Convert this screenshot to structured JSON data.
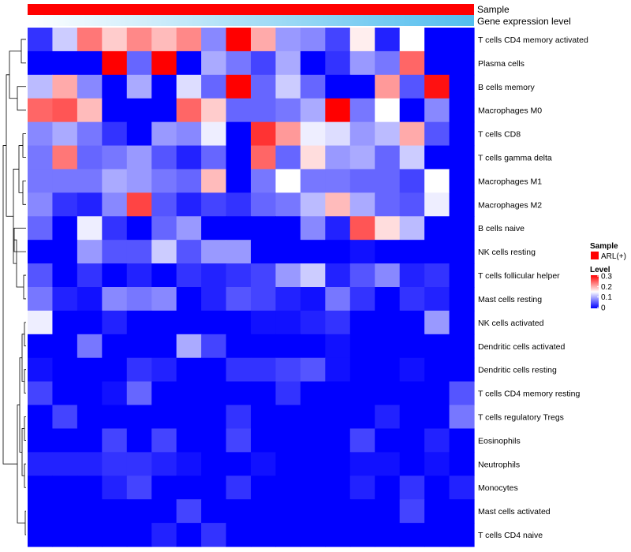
{
  "chart_data": {
    "type": "heatmap",
    "annotations": [
      {
        "label": "Sample",
        "color": "#ff0000"
      },
      {
        "label": "Gene expression level",
        "gradient": [
          "#ffffff",
          "#52bdee"
        ]
      }
    ],
    "rows": [
      "T cells CD4 memory activated",
      "Plasma cells",
      "B cells memory",
      "Macrophages M0",
      "T cells CD8",
      "T cells gamma delta",
      "Macrophages M1",
      "Macrophages M2",
      "B cells naive",
      "NK cells resting",
      "T cells follicular helper",
      "Mast cells resting",
      "NK cells activated",
      "Dendritic cells activated",
      "Dendritic cells resting",
      "T cells CD4 memory resting",
      "T cells regulatory  Tregs",
      "Eosinophils",
      "Neutrophils",
      "Monocytes",
      "Mast cells activated",
      "T cells CD4 naive"
    ],
    "n_columns": 18,
    "values": [
      [
        0.03,
        0.12,
        0.23,
        0.18,
        0.22,
        0.19,
        0.22,
        0.08,
        0.3,
        0.2,
        0.09,
        0.08,
        0.04,
        0.16,
        0.02,
        0.15,
        0.0,
        0.0
      ],
      [
        0.0,
        0.0,
        0.0,
        0.3,
        0.06,
        0.3,
        0.0,
        0.1,
        0.07,
        0.04,
        0.1,
        0.0,
        0.03,
        0.09,
        0.07,
        0.24,
        0.0,
        0.0
      ],
      [
        0.11,
        0.2,
        0.08,
        0.0,
        0.1,
        0.0,
        0.13,
        0.06,
        0.3,
        0.06,
        0.12,
        0.06,
        0.0,
        0.0,
        0.21,
        0.05,
        0.29,
        0.0
      ],
      [
        0.24,
        0.25,
        0.19,
        0.0,
        0.0,
        0.0,
        0.24,
        0.18,
        0.06,
        0.06,
        0.07,
        0.1,
        0.3,
        0.07,
        0.15,
        0.0,
        0.08,
        0.0
      ],
      [
        0.08,
        0.1,
        0.07,
        0.03,
        0.0,
        0.09,
        0.08,
        0.14,
        0.0,
        0.27,
        0.21,
        0.14,
        0.13,
        0.09,
        0.11,
        0.2,
        0.05,
        0.0
      ],
      [
        0.07,
        0.23,
        0.06,
        0.07,
        0.09,
        0.05,
        0.02,
        0.06,
        0.0,
        0.24,
        0.06,
        0.17,
        0.09,
        0.1,
        0.06,
        0.12,
        0.0,
        0.0
      ],
      [
        0.07,
        0.07,
        0.07,
        0.1,
        0.09,
        0.07,
        0.06,
        0.19,
        0.0,
        0.07,
        0.15,
        0.07,
        0.07,
        0.06,
        0.06,
        0.04,
        0.15,
        0.0
      ],
      [
        0.08,
        0.03,
        0.02,
        0.08,
        0.26,
        0.05,
        0.02,
        0.04,
        0.03,
        0.06,
        0.07,
        0.11,
        0.19,
        0.1,
        0.06,
        0.05,
        0.14,
        0.0
      ],
      [
        0.06,
        0.0,
        0.14,
        0.03,
        0.0,
        0.06,
        0.09,
        0.0,
        0.0,
        0.0,
        0.0,
        0.08,
        0.02,
        0.25,
        0.17,
        0.11,
        0.0,
        0.0
      ],
      [
        0.0,
        0.0,
        0.09,
        0.05,
        0.05,
        0.12,
        0.05,
        0.09,
        0.09,
        0.0,
        0.0,
        0.0,
        0.0,
        0.01,
        0.0,
        0.0,
        0.0,
        0.0
      ],
      [
        0.05,
        0.0,
        0.03,
        0.0,
        0.02,
        0.0,
        0.03,
        0.02,
        0.03,
        0.04,
        0.09,
        0.12,
        0.02,
        0.05,
        0.08,
        0.02,
        0.03,
        0.0
      ],
      [
        0.07,
        0.02,
        0.01,
        0.08,
        0.07,
        0.08,
        0.0,
        0.02,
        0.05,
        0.04,
        0.02,
        0.01,
        0.07,
        0.03,
        0.0,
        0.03,
        0.02,
        0.0
      ],
      [
        0.14,
        0.0,
        0.0,
        0.02,
        0.0,
        0.0,
        0.0,
        0.0,
        0.0,
        0.01,
        0.01,
        0.02,
        0.03,
        0.0,
        0.0,
        0.0,
        0.09,
        0.0
      ],
      [
        0.0,
        0.0,
        0.07,
        0.0,
        0.0,
        0.0,
        0.1,
        0.04,
        0.0,
        0.0,
        0.0,
        0.0,
        0.01,
        0.0,
        0.0,
        0.0,
        0.0,
        0.0
      ],
      [
        0.01,
        0.0,
        0.0,
        0.0,
        0.03,
        0.02,
        0.0,
        0.0,
        0.03,
        0.03,
        0.04,
        0.05,
        0.01,
        0.0,
        0.0,
        0.01,
        0.0,
        0.0
      ],
      [
        0.04,
        0.0,
        0.0,
        0.01,
        0.06,
        0.0,
        0.0,
        0.0,
        0.0,
        0.0,
        0.03,
        0.0,
        0.0,
        0.0,
        0.0,
        0.0,
        0.0,
        0.05
      ],
      [
        0.0,
        0.04,
        0.0,
        0.0,
        0.0,
        0.0,
        0.0,
        0.0,
        0.03,
        0.0,
        0.0,
        0.0,
        0.0,
        0.0,
        0.02,
        0.0,
        0.0,
        0.07
      ],
      [
        0.0,
        0.0,
        0.0,
        0.04,
        0.0,
        0.04,
        0.0,
        0.0,
        0.04,
        0.0,
        0.0,
        0.0,
        0.0,
        0.04,
        0.0,
        0.0,
        0.02,
        0.0
      ],
      [
        0.02,
        0.02,
        0.02,
        0.03,
        0.03,
        0.02,
        0.01,
        0.0,
        0.0,
        0.01,
        0.0,
        0.0,
        0.0,
        0.01,
        0.01,
        0.0,
        0.01,
        0.0
      ],
      [
        0.0,
        0.0,
        0.0,
        0.02,
        0.04,
        0.0,
        0.0,
        0.0,
        0.03,
        0.0,
        0.0,
        0.0,
        0.0,
        0.02,
        0.0,
        0.03,
        0.0,
        0.02
      ],
      [
        0.0,
        0.0,
        0.0,
        0.0,
        0.0,
        0.0,
        0.04,
        0.0,
        0.0,
        0.0,
        0.0,
        0.0,
        0.0,
        0.0,
        0.0,
        0.04,
        0.0,
        0.0
      ],
      [
        0.0,
        0.0,
        0.0,
        0.0,
        0.0,
        0.02,
        0.0,
        0.03,
        0.0,
        0.0,
        0.0,
        0.0,
        0.0,
        0.0,
        0.0,
        0.0,
        0.0,
        0.0
      ]
    ],
    "color_scale": {
      "min": 0,
      "mid": 0.15,
      "max": 0.3,
      "colors": [
        "#0000ff",
        "#ffffff",
        "#ff0000"
      ]
    },
    "legend": {
      "sample_title": "Sample",
      "sample_item": "ARL(+)",
      "level_title": "Level",
      "level_ticks": [
        "0.3",
        "0.2",
        "0.1",
        "0"
      ]
    },
    "dendrogram": "row"
  }
}
